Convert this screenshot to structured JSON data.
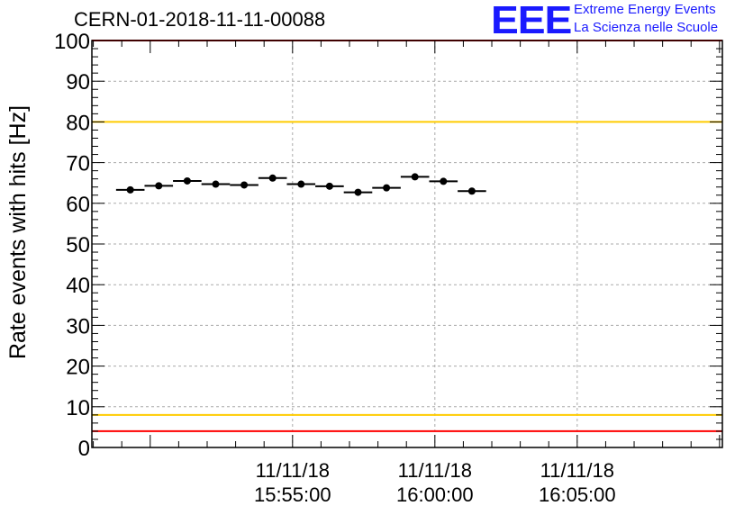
{
  "header": {
    "run_id": "CERN-01-2018-11-11-00088",
    "logo_text": "EEE",
    "logo_line1": "Extreme Energy Events",
    "logo_line2": "La Scienza nelle Scuole"
  },
  "colors": {
    "logo": "#1a1aff",
    "upper_limit": "#ff0000",
    "lower_limit": "#ff0000",
    "upper_warning": "#ffcc00",
    "lower_warning": "#ffcc00",
    "grid": "#aaaaaa",
    "markers": "#000000"
  },
  "chart_data": {
    "type": "scatter",
    "ylabel": "Rate events with hits [Hz]",
    "ylim": [
      0,
      100
    ],
    "yticks": [
      0,
      10,
      20,
      30,
      40,
      50,
      60,
      70,
      80,
      90,
      100
    ],
    "x_range_min": [
      -12.05,
      10.1
    ],
    "xticks": [
      {
        "min": -5,
        "date": "11/11/18",
        "time": "15:55:00"
      },
      {
        "min": 0,
        "date": "11/11/18",
        "time": "16:00:00"
      },
      {
        "min": 5,
        "date": "11/11/18",
        "time": "16:05:00"
      }
    ],
    "grid": true,
    "bin_width_min": 1,
    "x_min": [
      -10.7,
      -9.7,
      -8.7,
      -7.7,
      -6.7,
      -5.7,
      -4.7,
      -3.7,
      -2.7,
      -1.7,
      -0.7,
      0.3,
      1.3
    ],
    "values": [
      63.3,
      64.3,
      65.5,
      64.7,
      64.5,
      66.2,
      64.7,
      64.2,
      62.7,
      63.8,
      66.5,
      65.4,
      63.0
    ],
    "reference_lines": [
      {
        "name": "upper_limit",
        "value": 100
      },
      {
        "name": "upper_warning",
        "value": 80
      },
      {
        "name": "lower_warning",
        "value": 8
      },
      {
        "name": "lower_limit",
        "value": 4
      }
    ]
  }
}
